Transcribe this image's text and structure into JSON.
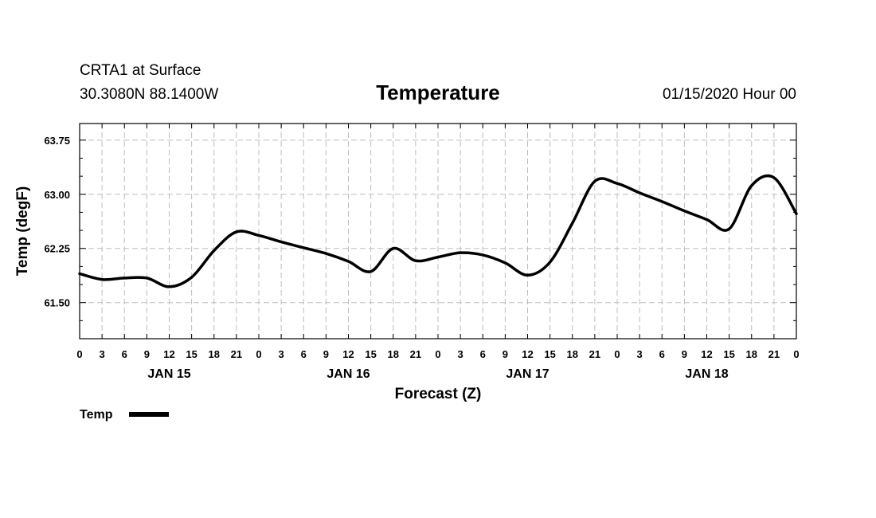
{
  "header": {
    "station": "CRTA1 at Surface",
    "coords": "30.3080N 88.1400W",
    "title": "Temperature",
    "datetime": "01/15/2020 Hour 00"
  },
  "chart_data": {
    "type": "line",
    "title": "Temperature",
    "xlabel": "Forecast (Z)",
    "ylabel": "Temp (degF)",
    "x_units": "forecast hour from 01/15/2020 00Z",
    "xlim": [
      0,
      96
    ],
    "ylim": [
      61.0,
      63.98
    ],
    "x_ticks": [
      0,
      3,
      6,
      9,
      12,
      15,
      18,
      21,
      24,
      27,
      30,
      33,
      36,
      39,
      42,
      45,
      48,
      51,
      54,
      57,
      60,
      63,
      66,
      69,
      72,
      75,
      78,
      81,
      84,
      87,
      90,
      93,
      96
    ],
    "x_tick_labels": [
      "0",
      "3",
      "6",
      "9",
      "12",
      "15",
      "18",
      "21",
      "0",
      "3",
      "6",
      "9",
      "12",
      "15",
      "18",
      "21",
      "0",
      "3",
      "6",
      "9",
      "12",
      "15",
      "18",
      "21",
      "0",
      "3",
      "6",
      "9",
      "12",
      "15",
      "18",
      "21",
      "0"
    ],
    "day_labels": [
      {
        "x": 12,
        "label": "JAN 15"
      },
      {
        "x": 36,
        "label": "JAN 16"
      },
      {
        "x": 60,
        "label": "JAN 17"
      },
      {
        "x": 84,
        "label": "JAN 18"
      }
    ],
    "y_ticks": [
      61.5,
      62.25,
      63.0,
      63.75
    ],
    "y_tick_labels": [
      "61.50",
      "62.25",
      "63.00",
      "63.75"
    ],
    "grid": true,
    "legend": "bottom-left",
    "series": [
      {
        "name": "Temp",
        "color": "#000000",
        "x": [
          0,
          3,
          6,
          9,
          12,
          15,
          18,
          21,
          24,
          27,
          30,
          33,
          36,
          39,
          42,
          45,
          48,
          51,
          54,
          57,
          60,
          63,
          66,
          69,
          72,
          75,
          78,
          81,
          84,
          87,
          90,
          93,
          96
        ],
        "y": [
          61.9,
          61.82,
          61.84,
          61.84,
          61.72,
          61.85,
          62.22,
          62.48,
          62.43,
          62.34,
          62.26,
          62.18,
          62.07,
          61.93,
          62.25,
          62.08,
          62.13,
          62.19,
          62.16,
          62.05,
          61.88,
          62.06,
          62.6,
          63.18,
          63.15,
          63.02,
          62.9,
          62.77,
          62.65,
          62.52,
          63.12,
          63.23,
          62.73
        ]
      }
    ]
  }
}
